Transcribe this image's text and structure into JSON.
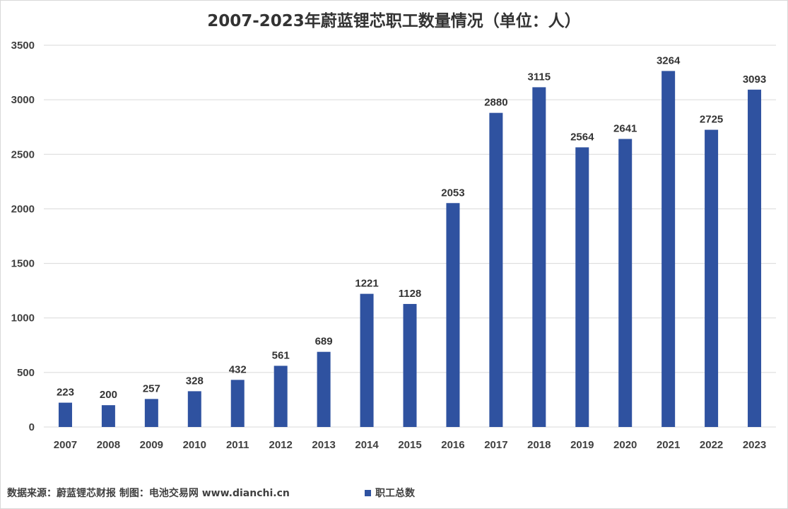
{
  "chart_data": {
    "type": "bar",
    "title": "2007-2023年蔚蓝锂芯职工数量情况（单位：人）",
    "categories": [
      "2007",
      "2008",
      "2009",
      "2010",
      "2011",
      "2012",
      "2013",
      "2014",
      "2015",
      "2016",
      "2017",
      "2018",
      "2019",
      "2020",
      "2021",
      "2022",
      "2023"
    ],
    "series": [
      {
        "name": "职工总数",
        "values": [
          223,
          200,
          257,
          328,
          432,
          561,
          689,
          1221,
          1128,
          2053,
          2880,
          3115,
          2564,
          2641,
          3264,
          2725,
          3093
        ]
      }
    ],
    "ylim": [
      0,
      3500
    ],
    "yticks": [
      0,
      500,
      1000,
      1500,
      2000,
      2500,
      3000,
      3500
    ],
    "grid": true,
    "legend_position": "bottom",
    "data_labels": true,
    "bar_color": "#2F52A0",
    "grid_color": "#D9D9D9"
  },
  "footer": {
    "source_note": "数据来源：蔚蓝锂芯财报  制图：电池交易网 www.dianchi.cn"
  }
}
